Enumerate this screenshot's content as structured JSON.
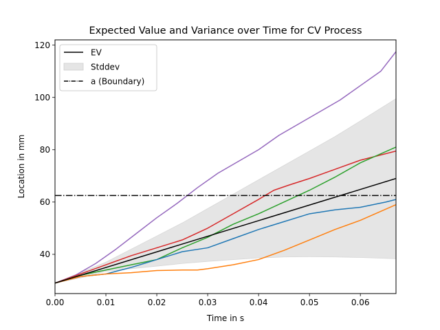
{
  "chart_data": {
    "type": "line",
    "title": "Expected Value and Variance over Time for CV Process",
    "xlabel": "Time in s",
    "ylabel": "Location in mm",
    "xlim": [
      0.0,
      0.067
    ],
    "ylim": [
      25,
      122
    ],
    "xticks": [
      0.0,
      0.01,
      0.02,
      0.03,
      0.04,
      0.05,
      0.06
    ],
    "xtick_labels": [
      "0.00",
      "0.01",
      "0.02",
      "0.03",
      "0.04",
      "0.05",
      "0.06"
    ],
    "yticks": [
      40,
      60,
      80,
      100,
      120
    ],
    "ytick_labels": [
      "40",
      "60",
      "80",
      "100",
      "120"
    ],
    "grid": false,
    "legend_position": "top-left",
    "legend": {
      "ev": "EV",
      "stddev": "Stddev",
      "boundary": "a (Boundary)"
    },
    "ev": {
      "x": [
        0.0,
        0.067
      ],
      "y": [
        29.0,
        69.0
      ],
      "color": "#000000"
    },
    "stddev_band": {
      "x": [
        0.0,
        0.005,
        0.01,
        0.015,
        0.02,
        0.025,
        0.03,
        0.035,
        0.04,
        0.045,
        0.05,
        0.055,
        0.06,
        0.067
      ],
      "upper": [
        29.0,
        33.0,
        37.0,
        42.0,
        47.0,
        52.0,
        57.5,
        63.0,
        68.5,
        74.0,
        79.5,
        85.0,
        91.0,
        99.5
      ],
      "lower": [
        29.0,
        31.0,
        33.5,
        34.5,
        35.5,
        36.5,
        37.3,
        38.0,
        38.6,
        39.0,
        39.1,
        39.0,
        38.8,
        38.3
      ],
      "color": "#e5e5e5"
    },
    "boundary": {
      "y": 62.5,
      "color": "#000000"
    },
    "series": [
      {
        "color": "#9467bd",
        "x": [
          0.0,
          0.004,
          0.008,
          0.012,
          0.016,
          0.02,
          0.024,
          0.028,
          0.032,
          0.036,
          0.04,
          0.044,
          0.048,
          0.052,
          0.056,
          0.06,
          0.064,
          0.067
        ],
        "y": [
          29.0,
          32.0,
          36.5,
          42.0,
          48.0,
          54.0,
          59.5,
          65.5,
          71.0,
          75.5,
          80.0,
          85.5,
          90.0,
          94.5,
          99.0,
          104.5,
          110.0,
          117.5
        ]
      },
      {
        "color": "#d62728",
        "x": [
          0.0,
          0.005,
          0.01,
          0.015,
          0.02,
          0.025,
          0.03,
          0.035,
          0.04,
          0.043,
          0.046,
          0.05,
          0.055,
          0.06,
          0.067
        ],
        "y": [
          29.0,
          32.5,
          36.0,
          39.5,
          42.5,
          45.5,
          50.0,
          55.5,
          61.0,
          64.5,
          66.5,
          69.0,
          72.5,
          76.0,
          79.5
        ]
      },
      {
        "color": "#2ca02c",
        "x": [
          0.0,
          0.005,
          0.01,
          0.015,
          0.02,
          0.025,
          0.03,
          0.035,
          0.04,
          0.045,
          0.05,
          0.055,
          0.06,
          0.067
        ],
        "y": [
          29.0,
          32.0,
          34.0,
          36.0,
          38.0,
          42.5,
          46.5,
          51.5,
          55.5,
          60.0,
          64.5,
          69.5,
          75.0,
          81.0
        ]
      },
      {
        "color": "#1f77b4",
        "x": [
          0.0,
          0.005,
          0.01,
          0.012,
          0.015,
          0.02,
          0.025,
          0.03,
          0.035,
          0.04,
          0.045,
          0.05,
          0.055,
          0.06,
          0.065,
          0.067
        ],
        "y": [
          29.0,
          31.5,
          32.5,
          33.5,
          35.0,
          38.0,
          41.0,
          42.5,
          46.0,
          49.5,
          52.5,
          55.5,
          57.0,
          58.0,
          60.0,
          61.0
        ]
      },
      {
        "color": "#ff7f0e",
        "x": [
          0.0,
          0.005,
          0.01,
          0.015,
          0.02,
          0.025,
          0.028,
          0.03,
          0.035,
          0.04,
          0.045,
          0.05,
          0.055,
          0.06,
          0.067
        ],
        "y": [
          29.0,
          31.5,
          32.5,
          33.0,
          33.8,
          34.0,
          34.0,
          34.5,
          36.0,
          38.0,
          41.5,
          45.5,
          49.5,
          53.0,
          59.0
        ]
      }
    ]
  }
}
